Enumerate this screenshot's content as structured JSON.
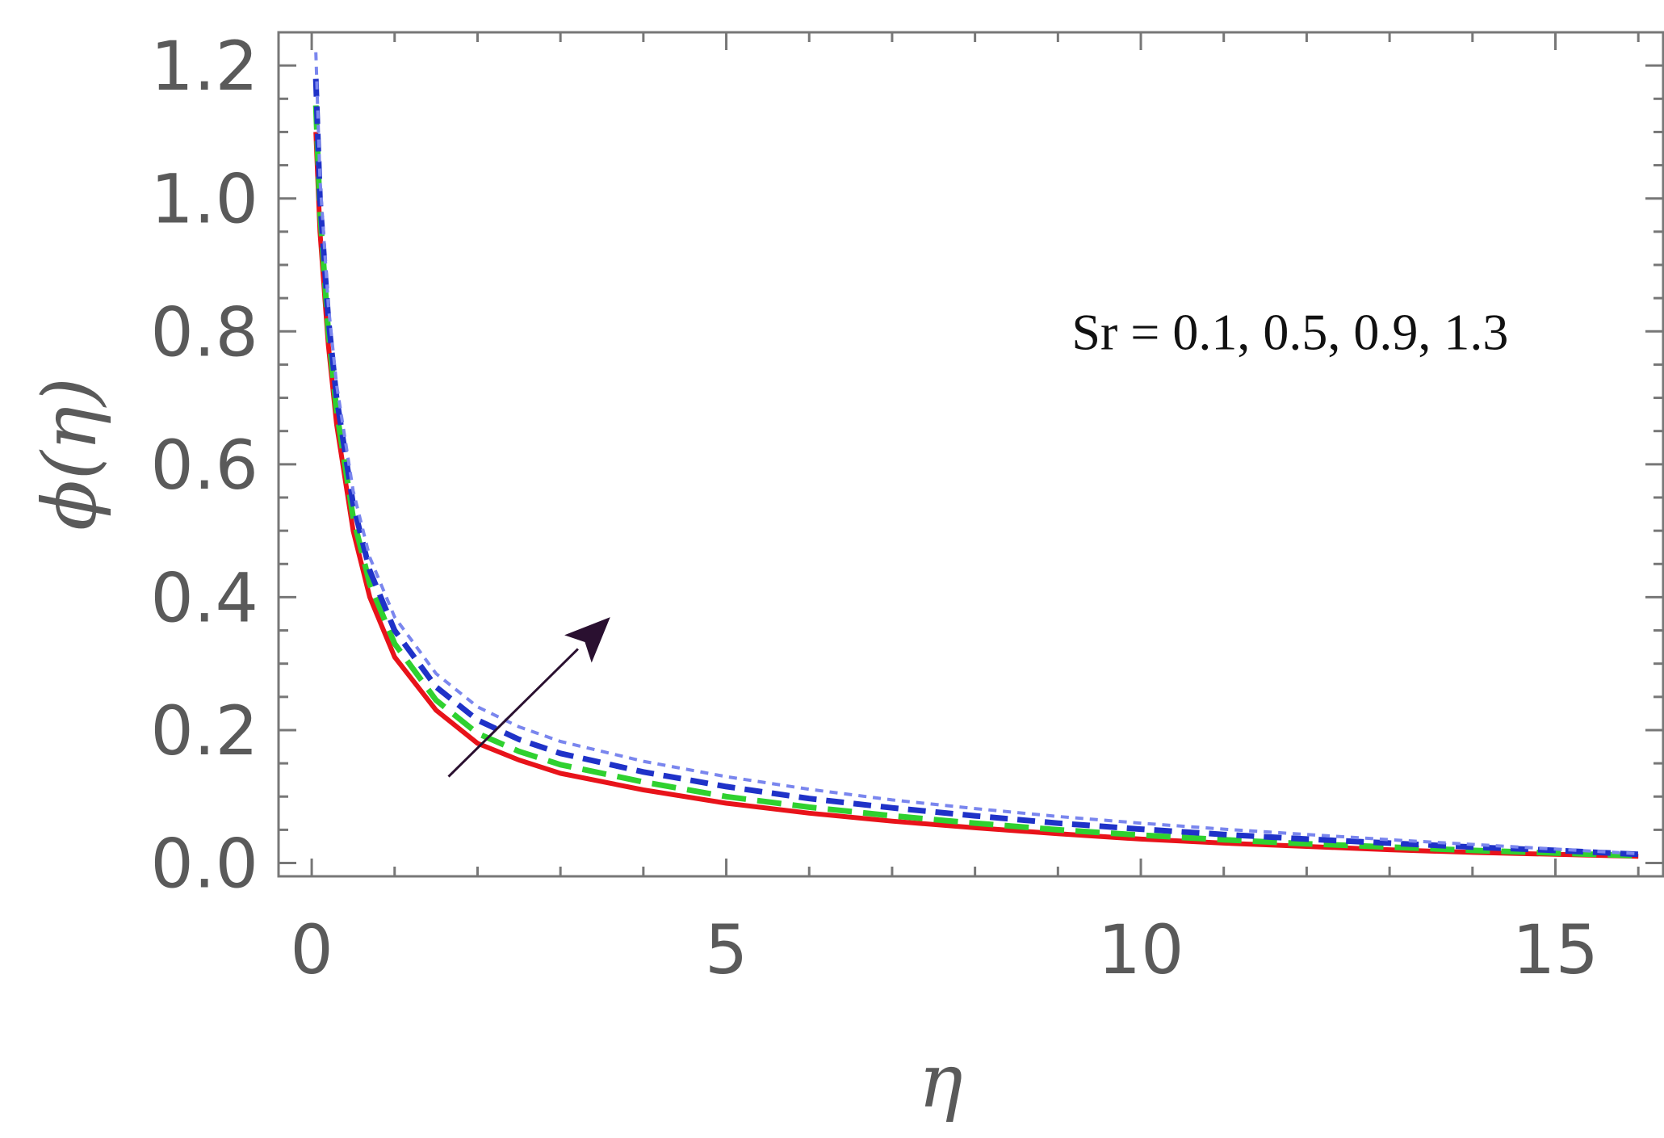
{
  "chart_data": {
    "type": "line",
    "title": "",
    "xlabel": "η",
    "ylabel": "ϕ(η)",
    "xlim": [
      -0.4,
      16.3
    ],
    "ylim": [
      -0.02,
      1.25
    ],
    "x_ticks": [
      0,
      5,
      10,
      15
    ],
    "x_tick_labels": [
      "0",
      "5",
      "10",
      "15"
    ],
    "y_ticks": [
      0.0,
      0.2,
      0.4,
      0.6,
      0.8,
      1.0,
      1.2
    ],
    "y_tick_labels": [
      "0.0",
      "0.2",
      "0.4",
      "0.6",
      "0.8",
      "1.0",
      "1.2"
    ],
    "grid": false,
    "annotation": {
      "text": "Sr = 0.1, 0.5, 0.9, 1.3",
      "at": [
        11.8,
        0.8
      ],
      "arrow_from": [
        1.65,
        0.13
      ],
      "arrow_to": [
        3.6,
        0.37
      ],
      "arrow_color": "#2a1030"
    },
    "series": [
      {
        "color": "#e8131a",
        "style": "solid",
        "x": [
          0.05,
          0.1,
          0.2,
          0.3,
          0.5,
          0.7,
          1.0,
          1.5,
          2.0,
          2.5,
          3.0,
          4.0,
          5.0,
          6.0,
          7.0,
          8.0,
          9.0,
          10.0,
          11.0,
          12.0,
          13.0,
          14.0,
          15.0,
          16.0
        ],
        "y": [
          1.1,
          0.95,
          0.78,
          0.66,
          0.5,
          0.4,
          0.31,
          0.23,
          0.18,
          0.155,
          0.135,
          0.11,
          0.09,
          0.075,
          0.063,
          0.053,
          0.044,
          0.036,
          0.03,
          0.025,
          0.02,
          0.016,
          0.013,
          0.01
        ]
      },
      {
        "color": "#2fd12f",
        "style": "dashed",
        "x": [
          0.05,
          0.1,
          0.2,
          0.3,
          0.5,
          0.7,
          1.0,
          1.5,
          2.0,
          2.5,
          3.0,
          4.0,
          5.0,
          6.0,
          7.0,
          8.0,
          9.0,
          10.0,
          11.0,
          12.0,
          13.0,
          14.0,
          15.0,
          16.0
        ],
        "y": [
          1.14,
          0.98,
          0.8,
          0.68,
          0.52,
          0.42,
          0.33,
          0.245,
          0.195,
          0.168,
          0.148,
          0.122,
          0.1,
          0.084,
          0.071,
          0.06,
          0.05,
          0.042,
          0.035,
          0.029,
          0.024,
          0.019,
          0.015,
          0.011
        ]
      },
      {
        "color": "#1f32c8",
        "style": "dashed",
        "x": [
          0.05,
          0.1,
          0.2,
          0.3,
          0.5,
          0.7,
          1.0,
          1.5,
          2.0,
          2.5,
          3.0,
          4.0,
          5.0,
          6.0,
          7.0,
          8.0,
          9.0,
          10.0,
          11.0,
          12.0,
          13.0,
          14.0,
          15.0,
          16.0
        ],
        "y": [
          1.18,
          1.0,
          0.82,
          0.7,
          0.54,
          0.44,
          0.35,
          0.265,
          0.215,
          0.186,
          0.165,
          0.137,
          0.115,
          0.097,
          0.083,
          0.071,
          0.06,
          0.051,
          0.043,
          0.036,
          0.03,
          0.024,
          0.019,
          0.013
        ]
      },
      {
        "color": "#7a86ee",
        "style": "dotted",
        "x": [
          0.05,
          0.1,
          0.2,
          0.3,
          0.5,
          0.7,
          1.0,
          1.5,
          2.0,
          2.5,
          3.0,
          4.0,
          5.0,
          6.0,
          7.0,
          8.0,
          9.0,
          10.0,
          11.0,
          12.0,
          13.0,
          14.0,
          15.0,
          16.0
        ],
        "y": [
          1.22,
          1.03,
          0.84,
          0.72,
          0.56,
          0.46,
          0.37,
          0.285,
          0.235,
          0.205,
          0.183,
          0.153,
          0.13,
          0.111,
          0.095,
          0.082,
          0.07,
          0.06,
          0.051,
          0.043,
          0.035,
          0.028,
          0.021,
          0.014
        ]
      }
    ]
  }
}
